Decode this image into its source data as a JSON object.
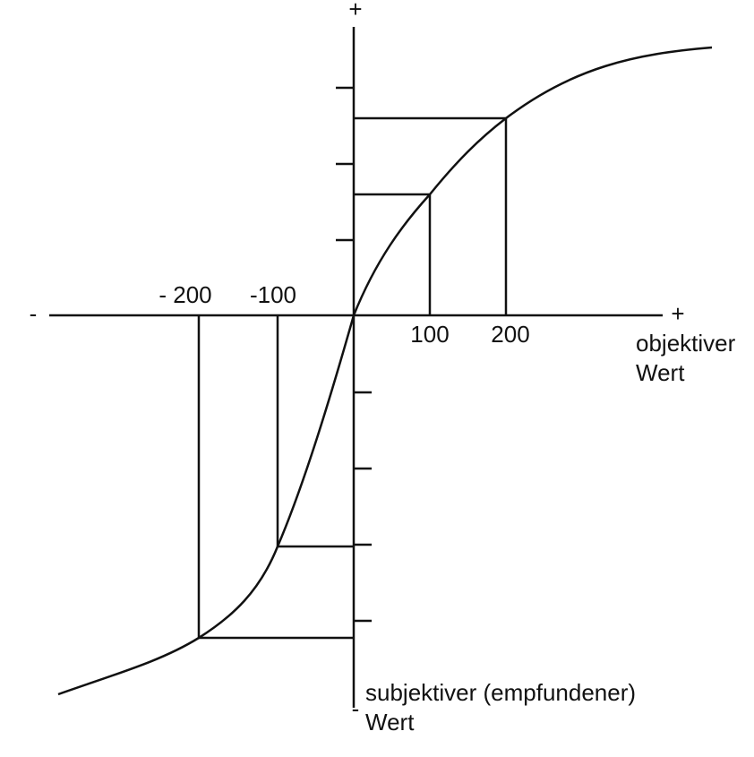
{
  "signs": {
    "top": "+",
    "left": "-",
    "right": "+",
    "bottom": "-"
  },
  "x_labels": [
    "- 200",
    "-100",
    "100",
    "200"
  ],
  "x_axis_label": [
    "objektiver",
    "Wert"
  ],
  "y_axis_label": [
    "subjektiver (empfundener)",
    "Wert"
  ]
}
